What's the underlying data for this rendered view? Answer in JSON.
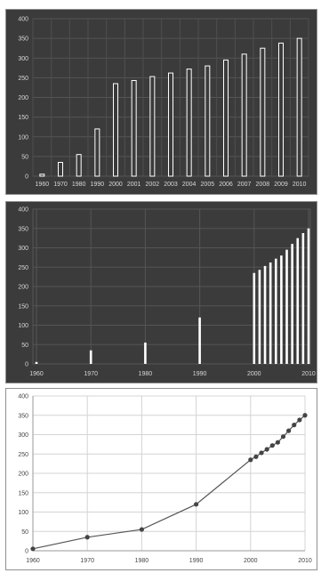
{
  "chart_data": [
    {
      "type": "bar",
      "x_axis": "categorical",
      "categories": [
        "1960",
        "1970",
        "1980",
        "1990",
        "2000",
        "2001",
        "2002",
        "2003",
        "2004",
        "2005",
        "2006",
        "2007",
        "2008",
        "2009",
        "2010"
      ],
      "values": [
        5,
        35,
        55,
        120,
        235,
        243,
        253,
        262,
        272,
        280,
        295,
        310,
        325,
        338,
        350
      ],
      "xlabel": "",
      "ylabel": "",
      "ylim": [
        0,
        400
      ],
      "yticks": [
        0,
        50,
        100,
        150,
        200,
        250,
        300,
        350,
        400
      ],
      "grid": true,
      "theme": "dark",
      "bar_color": "#ffffff",
      "background": "#3b3b3b"
    },
    {
      "type": "bar",
      "x_axis": "date",
      "x": [
        1960,
        1970,
        1980,
        1990,
        2000,
        2001,
        2002,
        2003,
        2004,
        2005,
        2006,
        2007,
        2008,
        2009,
        2010
      ],
      "values": [
        5,
        35,
        55,
        120,
        235,
        243,
        253,
        262,
        272,
        280,
        295,
        310,
        325,
        338,
        350
      ],
      "xticks": [
        "1960",
        "1970",
        "1980",
        "1990",
        "2000",
        "2010"
      ],
      "xlim": [
        1960,
        2010
      ],
      "xlabel": "",
      "ylabel": "",
      "ylim": [
        0,
        400
      ],
      "yticks": [
        0,
        50,
        100,
        150,
        200,
        250,
        300,
        350,
        400
      ],
      "grid": true,
      "theme": "dark",
      "bar_color": "#ffffff",
      "background": "#3b3b3b"
    },
    {
      "type": "line",
      "x": [
        1960,
        1970,
        1980,
        1990,
        2000,
        2001,
        2002,
        2003,
        2004,
        2005,
        2006,
        2007,
        2008,
        2009,
        2010
      ],
      "values": [
        5,
        35,
        55,
        120,
        235,
        243,
        253,
        262,
        272,
        280,
        295,
        310,
        325,
        338,
        350
      ],
      "xticks": [
        "1960",
        "1970",
        "1980",
        "1990",
        "2000",
        "2010"
      ],
      "xlim": [
        1960,
        2010
      ],
      "xlabel": "",
      "ylabel": "",
      "ylim": [
        0,
        400
      ],
      "yticks": [
        0,
        50,
        100,
        150,
        200,
        250,
        300,
        350,
        400
      ],
      "grid": true,
      "markers": true,
      "theme": "light",
      "line_color": "#555555",
      "marker_color": "#444444",
      "background": "#ffffff"
    }
  ]
}
